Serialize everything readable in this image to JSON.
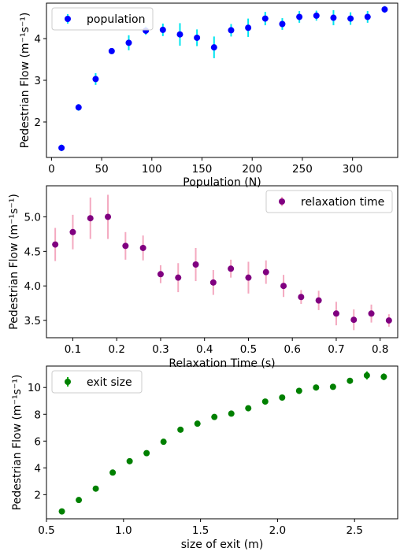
{
  "chart_data": [
    {
      "type": "scatter",
      "title": "",
      "xlabel": "Population (N)",
      "ylabel": "Pedestrian Flow (m⁻¹s⁻¹)",
      "xlim": [
        -5,
        345
      ],
      "ylim": [
        1.15,
        4.85
      ],
      "xticks": [
        0,
        50,
        100,
        150,
        200,
        250,
        300
      ],
      "yticks": [
        2,
        3,
        4
      ],
      "legend": {
        "position": "top-left",
        "label": "population"
      },
      "colors": {
        "marker": "#0000ff",
        "error": "#00e5ee"
      },
      "series": [
        {
          "name": "population",
          "x": [
            10,
            27,
            44,
            60,
            77,
            94,
            111,
            128,
            145,
            162,
            179,
            196,
            213,
            230,
            247,
            264,
            281,
            298,
            315,
            332
          ],
          "y": [
            1.38,
            2.35,
            3.03,
            3.7,
            3.9,
            4.19,
            4.21,
            4.1,
            4.02,
            3.79,
            4.2,
            4.26,
            4.48,
            4.35,
            4.52,
            4.55,
            4.5,
            4.48,
            4.52,
            4.7
          ],
          "err": [
            0.08,
            0.08,
            0.14,
            0.07,
            0.18,
            0.1,
            0.15,
            0.27,
            0.2,
            0.26,
            0.15,
            0.22,
            0.16,
            0.14,
            0.14,
            0.12,
            0.18,
            0.15,
            0.14,
            0.08
          ]
        }
      ]
    },
    {
      "type": "scatter",
      "title": "",
      "xlabel": "Relaxation Time (s)",
      "ylabel": "Pedestrian Flow (m⁻¹s⁻¹)",
      "xlim": [
        0.04,
        0.84
      ],
      "ylim": [
        3.25,
        5.45
      ],
      "xticks": [
        0.1,
        0.2,
        0.3,
        0.4,
        0.5,
        0.6,
        0.7,
        0.8
      ],
      "xtick_labels": [
        "0.1",
        "0.2",
        "0.3",
        "0.4",
        "0.5",
        "0.6",
        "0.7",
        "0.8"
      ],
      "yticks": [
        3.5,
        4.0,
        4.5,
        5.0
      ],
      "ytick_labels": [
        "3.5",
        "4.0",
        "4.5",
        "5.0"
      ],
      "legend": {
        "position": "top-right",
        "label": "relaxation time"
      },
      "colors": {
        "marker": "#800080",
        "error": "#f4a9c0"
      },
      "series": [
        {
          "name": "relaxation time",
          "x": [
            0.06,
            0.1,
            0.14,
            0.18,
            0.22,
            0.26,
            0.3,
            0.34,
            0.38,
            0.42,
            0.46,
            0.5,
            0.54,
            0.58,
            0.62,
            0.66,
            0.7,
            0.74,
            0.78,
            0.82
          ],
          "y": [
            4.6,
            4.78,
            4.98,
            5.0,
            4.58,
            4.55,
            4.17,
            4.12,
            4.31,
            4.05,
            4.25,
            4.12,
            4.2,
            4.0,
            3.84,
            3.79,
            3.6,
            3.51,
            3.6,
            3.5
          ],
          "err": [
            0.24,
            0.25,
            0.3,
            0.32,
            0.2,
            0.18,
            0.13,
            0.21,
            0.24,
            0.18,
            0.13,
            0.23,
            0.17,
            0.16,
            0.1,
            0.14,
            0.17,
            0.15,
            0.13,
            0.09
          ]
        }
      ]
    },
    {
      "type": "scatter",
      "title": "",
      "xlabel": "size of exit (m)",
      "ylabel": "Pedestrian Flow (m⁻¹s⁻¹)",
      "xlim": [
        0.5,
        2.78
      ],
      "ylim": [
        0.2,
        11.6
      ],
      "xticks": [
        0.5,
        1.0,
        1.5,
        2.0,
        2.5
      ],
      "xtick_labels": [
        "0.5",
        "1.0",
        "1.5",
        "2.0",
        "2.5"
      ],
      "yticks": [
        2,
        4,
        6,
        8,
        10
      ],
      "legend": {
        "position": "top-left",
        "label": "exit size"
      },
      "colors": {
        "marker": "#008000",
        "error": "#00b000"
      },
      "series": [
        {
          "name": "exit size",
          "x": [
            0.6,
            0.71,
            0.82,
            0.93,
            1.04,
            1.15,
            1.26,
            1.37,
            1.48,
            1.59,
            1.7,
            1.81,
            1.92,
            2.03,
            2.14,
            2.25,
            2.36,
            2.47,
            2.58,
            2.69
          ],
          "y": [
            0.75,
            1.6,
            2.45,
            3.65,
            4.5,
            5.1,
            5.95,
            6.85,
            7.3,
            7.8,
            8.05,
            8.45,
            8.95,
            9.25,
            9.75,
            10.0,
            10.05,
            10.5,
            10.9,
            10.8
          ],
          "err": [
            0.1,
            0.1,
            0.1,
            0.1,
            0.1,
            0.15,
            0.15,
            0.1,
            0.15,
            0.15,
            0.1,
            0.15,
            0.1,
            0.2,
            0.15,
            0.2,
            0.2,
            0.15,
            0.3,
            0.25
          ]
        }
      ]
    }
  ]
}
